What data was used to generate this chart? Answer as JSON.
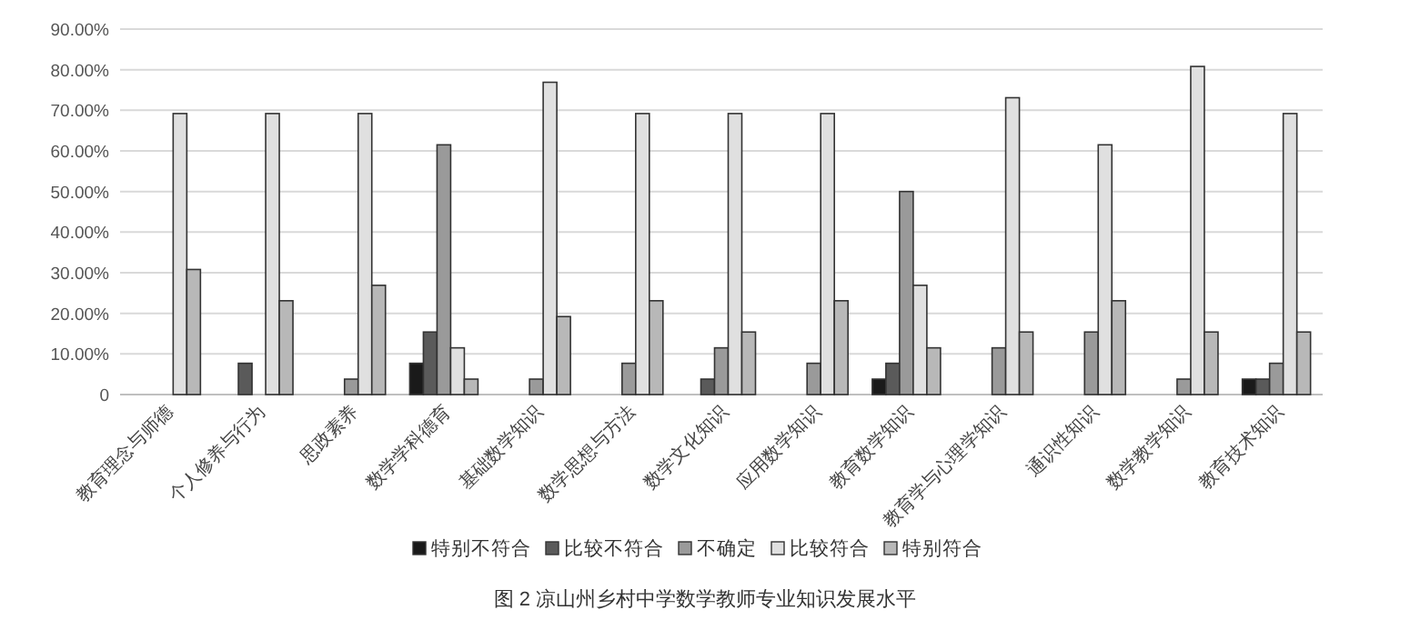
{
  "chart_data": {
    "type": "bar",
    "title": "图 2  凉山州乡村中学数学教师专业知识发展水平",
    "categories": [
      "教育理念与师德",
      "个人修养与行为",
      "思政素养",
      "数学学科德育",
      "基础数学知识",
      "数学思想与方法",
      "数学文化知识",
      "应用数学知识",
      "教育数学知识",
      "教育学与心理学知识",
      "通识性知识",
      "数学教学知识",
      "教育技术知识"
    ],
    "series": [
      {
        "name": "特别不符合",
        "color": "#1a1a1a",
        "values": [
          null,
          null,
          null,
          7.7,
          null,
          null,
          null,
          null,
          3.8,
          null,
          null,
          null,
          3.8
        ]
      },
      {
        "name": "比较不符合",
        "color": "#5a5a5a",
        "values": [
          null,
          7.7,
          null,
          15.4,
          null,
          null,
          3.8,
          null,
          7.7,
          null,
          null,
          null,
          3.8
        ]
      },
      {
        "name": "不确定",
        "color": "#9a9a9a",
        "values": [
          null,
          null,
          3.8,
          61.5,
          3.8,
          7.7,
          11.5,
          7.7,
          50.0,
          11.5,
          15.4,
          3.8,
          7.7
        ]
      },
      {
        "name": "比较符合",
        "color": "#e0e0e0",
        "values": [
          69.2,
          69.2,
          69.2,
          11.5,
          76.9,
          69.2,
          69.2,
          69.2,
          26.9,
          73.1,
          61.5,
          80.8,
          69.2
        ]
      },
      {
        "name": "特别符合",
        "color": "#b8b8b8",
        "values": [
          30.8,
          23.1,
          26.9,
          3.8,
          19.2,
          23.1,
          15.4,
          23.1,
          11.5,
          15.4,
          23.1,
          15.4,
          15.4
        ]
      }
    ],
    "ylim": [
      0,
      90
    ],
    "yticks": [
      0,
      {
        "value": 10,
        "label": "10.00%"
      },
      {
        "value": 20,
        "label": "20.00%"
      },
      {
        "value": 30,
        "label": "30.00%"
      },
      {
        "value": 40,
        "label": "40.00%"
      },
      {
        "value": 50,
        "label": "50.00%"
      },
      {
        "value": 60,
        "label": "60.00%"
      },
      {
        "value": 70,
        "label": "70.00%"
      },
      {
        "value": 80,
        "label": "80.00%"
      },
      {
        "value": 90,
        "label": "90.00%"
      }
    ],
    "grid": "y",
    "legend": "bottom"
  }
}
